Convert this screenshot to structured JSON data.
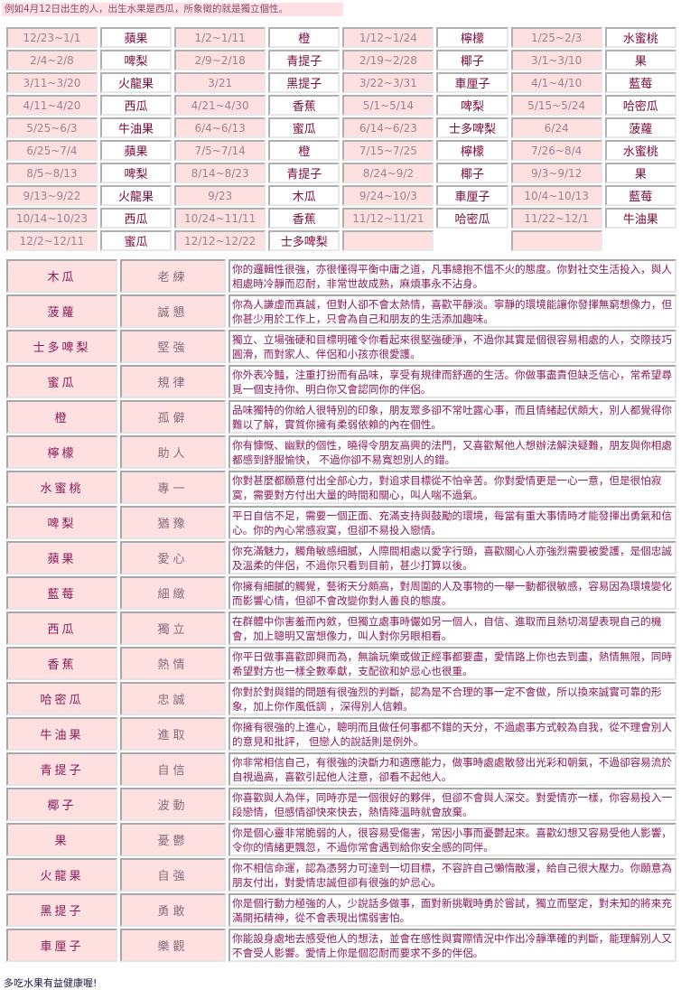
{
  "caption": "例如4月12日出生的人，出生水果是西瓜，所象徵的就是獨立個性。",
  "birth_table": [
    [
      [
        "12/23~1/1",
        "蘋果"
      ],
      [
        "1/2~1/11",
        "橙"
      ],
      [
        "1/12~1/24",
        "檸檬"
      ],
      [
        "1/25~2/3",
        "水蜜桃"
      ]
    ],
    [
      [
        "2/4~2/8",
        "啤梨"
      ],
      [
        "2/9~2/18",
        "青提子"
      ],
      [
        "2/19~2/28",
        "椰子"
      ],
      [
        "3/1~3/10",
        "果"
      ]
    ],
    [
      [
        "3/11~3/20",
        "火龍果"
      ],
      [
        "3/21",
        "黑提子"
      ],
      [
        "3/22~3/31",
        "車厘子"
      ],
      [
        "4/1~4/10",
        "藍莓"
      ]
    ],
    [
      [
        "4/11~4/20",
        "西瓜"
      ],
      [
        "4/21~4/30",
        "香蕉"
      ],
      [
        "5/1~5/14",
        "啤梨"
      ],
      [
        "5/15~5/24",
        "哈密瓜"
      ]
    ],
    [
      [
        "5/25~6/3",
        "牛油果"
      ],
      [
        "6/4~6/13",
        "蜜瓜"
      ],
      [
        "6/14~6/23",
        "士多啤梨"
      ],
      [
        "6/24",
        "菠蘿"
      ]
    ],
    [
      [
        "6/25~7/4",
        "蘋果"
      ],
      [
        "7/5~7/14",
        "橙"
      ],
      [
        "7/15~7/25",
        "檸檬"
      ],
      [
        "7/26~8/4",
        "水蜜桃"
      ]
    ],
    [
      [
        "8/5~8/13",
        "啤梨"
      ],
      [
        "8/14~8/23",
        "青提子"
      ],
      [
        "8/24~9/2",
        "椰子"
      ],
      [
        "9/3~9/12",
        "果"
      ]
    ],
    [
      [
        "9/13~9/22",
        "火龍果"
      ],
      [
        "9/23",
        "木瓜"
      ],
      [
        "9/24~10/3",
        "車厘子"
      ],
      [
        "10/4~10/13",
        "藍莓"
      ]
    ],
    [
      [
        "10/14~10/23",
        "西瓜"
      ],
      [
        "10/24~11/11",
        "香蕉"
      ],
      [
        "11/12~11/21",
        "哈密瓜"
      ],
      [
        "11/22~12/1",
        "牛油果"
      ]
    ],
    [
      [
        "12/2~12/11",
        "蜜瓜"
      ],
      [
        "12/12~12/22",
        "士多啤梨"
      ],
      [
        "",
        null
      ],
      [
        "",
        null
      ]
    ]
  ],
  "meanings": [
    {
      "fruit": "木瓜",
      "trait": "老練",
      "text": "你的邏輯性很強，亦很懂得平衡中庸之道，凡事總抱不慍不火的態度。你對社交生活投入，與人相處時冷靜而忍耐，非常世故成熟，麻煩事永不沾身。"
    },
    {
      "fruit": "菠蘿",
      "trait": "誠懇",
      "text": "你為人謙虛而真誠，但對人卻不會太熱情，喜歡平靜淡。寧靜的環境能讓你發揮無窮想像力，但你甚少用於工作上，只會為自己和朋友的生活添加趣味。"
    },
    {
      "fruit": "士多啤梨",
      "trait": "堅強",
      "text": "獨立、立場強硬和目標明確令你看起來很堅強硬淨，不過你其實是個很容易相處的人，交際技巧圓滑，而對家人、伴侶和小孩亦很愛護。"
    },
    {
      "fruit": "蜜瓜",
      "trait": "規律",
      "text": "你外表冷豔，注重打扮而有品味，享受有規律而舒適的生活。你做事盡責但缺乏信心，常希望尋覓一個支持你、明白你又會認同你的伴侶。"
    },
    {
      "fruit": "橙",
      "trait": "孤僻",
      "text": "品味獨特的你給人很特別的印象，朋友眾多卻不常吐露心事，而且情緒起伏頗大，別人都覺得你難以了解，實質你擁有柔弱依賴的內在個性。"
    },
    {
      "fruit": "檸檬",
      "trait": "助人",
      "text": "你有慷慨、幽默的個性，曉得令朋友高興的法門，又喜歡幫他人想辦法解決疑難，朋友與你相處都感到舒服愉快， 不過你卻不易寬恕別人的錯。"
    },
    {
      "fruit": "水蜜桃",
      "trait": "專一",
      "text": "你對甚麼都願意付出全部心力，對追求目標從不怕辛苦。你對愛情更是一心一意，但是很怕寂寞，需要對方付出大量的時間和關心，叫人喘不過氣。"
    },
    {
      "fruit": "啤梨",
      "trait": "猶豫",
      "text": "平日自信不足，需要一個正面、充滿支持與鼓勵的環境，每當有重大事情時才能發揮出勇氣和信心。你的內心常感寂寞，但卻不易投入戀情。"
    },
    {
      "fruit": "蘋果",
      "trait": "愛心",
      "text": "你充滿魅力，觸角敏感細膩，人際間相處以愛字行頭，喜歡關心人亦強烈需要被愛護，是個忠誠及溫柔的伴侶，不過你只看到目前，甚少打算以後。"
    },
    {
      "fruit": "藍莓",
      "trait": "細緻",
      "text": "你擁有細膩的觸覺，藝術天分頗高，對周圍的人及事物的一舉一動都很敏感，容易因為環境變化而影響心情，但卻不會改變你對人善良的態度。"
    },
    {
      "fruit": "西瓜",
      "trait": "獨立",
      "text": "在群體中你害羞而內斂，但獨立處事時儼如另一個人，自信、進取而且熱切渴望表現自己的機會，加上聰明又富想像力，叫人對你另眼相看。"
    },
    {
      "fruit": "香蕉",
      "trait": "熱情",
      "text": "你平日做事喜歡即興而為，無論玩樂或做正經事都要盡，愛情路上你也去到盡，熱情無限，同時希望對方也一樣全數奉獻，支配欲和妒忌心也很重。"
    },
    {
      "fruit": "哈密瓜",
      "trait": "忠誠",
      "text": "你對於對與錯的問題有很強烈的判斷，認為是不合理的事一定不會做，所以換來誠實可靠的形象，加上你作風低調 ，深得別人信賴。"
    },
    {
      "fruit": "牛油果",
      "trait": "進取",
      "text": "你擁有很強的上進心，聰明而且做任何事都不錯的天分，不過處事方式較為自我，從不理會別人的意見和批評， 但戀人的說話則是例外。"
    },
    {
      "fruit": "青提子",
      "trait": "自信",
      "text": "你非常相信自己，有很強的決斷力和適應能力，做事時處處散發出光彩和朝氣，不過卻容易流於自視過高，喜歡引起他人注意，卻看不起他人。"
    },
    {
      "fruit": "椰子",
      "trait": "波動",
      "text": "你喜歡與人為伴，同時亦是一個很好的夥伴，但卻不會與人深交。對愛情亦一樣，你容易投入一段戀情，但感情卻快來快去，熱情降溫時就會放棄。"
    },
    {
      "fruit": "果",
      "trait": "憂鬱",
      "text": "你是個心靈非常脆弱的人，很容易受傷害，常因小事而憂鬱起來。喜歡幻想又容易受他人影響，令你的情緒更飄忽，不過你常會遇到給你安全感的同伴。"
    },
    {
      "fruit": "火龍果",
      "trait": "自強",
      "text": "你不相信命運，認為憑努力可達到一切目標，不容許自己懶惰散漫，給自己很大壓力。你願意為朋友付出，對愛情忠誠但卻有很強的妒忌心。"
    },
    {
      "fruit": "黑提子",
      "trait": "勇敢",
      "text": "你是個行動力極強的人，少說話多做事，面對新挑戰時勇於嘗試，獨立而堅定，對未知的將來充滿開拓精神，從不會表現出懦弱害怕。"
    },
    {
      "fruit": "車厘子",
      "trait": "樂觀",
      "text": "你能設身處地去感受他人的想法，並會在感性與實際情況中作出冷靜準確的判斷，能理解別人又不會受人影響。愛情上你是個忍耐而要求不多的伴侶。"
    }
  ],
  "footer": "多吃水果有益健康喔!"
}
